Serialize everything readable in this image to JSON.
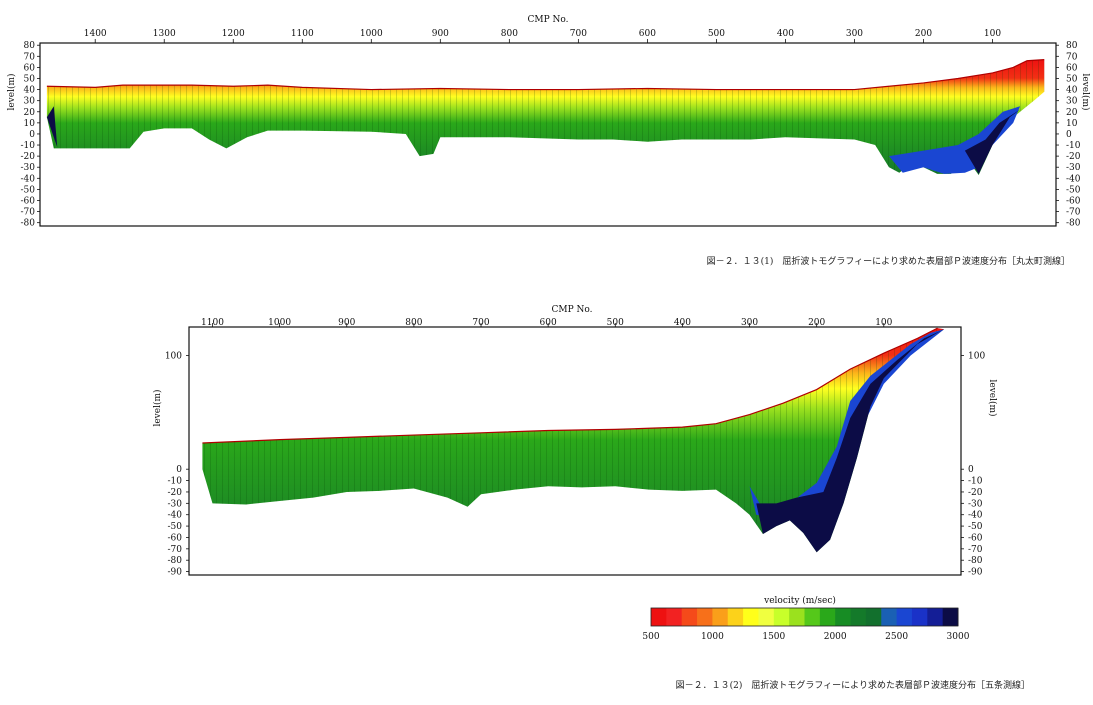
{
  "chart_data": [
    {
      "type": "heatmap",
      "title": "",
      "caption": "図－２．１３(1)　屈折波トモグラフィーにより求めた表層部Ｐ波速度分布［丸太町測線］",
      "xlabel": "CMP No.",
      "ylabel_left": "level(m)",
      "ylabel_right": "level(m)",
      "x_ticks": [
        1400,
        1300,
        1200,
        1100,
        1000,
        900,
        800,
        700,
        600,
        500,
        400,
        300,
        200,
        100
      ],
      "x_range": [
        1480,
        8
      ],
      "y_ticks": [
        80,
        70,
        60,
        50,
        40,
        30,
        20,
        10,
        0,
        -10,
        -20,
        -30,
        -40,
        -50,
        -60,
        -70,
        -80
      ],
      "y_range": [
        -83,
        82
      ],
      "surface": [
        [
          1470,
          43
        ],
        [
          1400,
          42
        ],
        [
          1360,
          44
        ],
        [
          1260,
          44
        ],
        [
          1200,
          43
        ],
        [
          1150,
          44
        ],
        [
          1100,
          42
        ],
        [
          1000,
          40
        ],
        [
          900,
          41
        ],
        [
          800,
          40
        ],
        [
          700,
          40
        ],
        [
          600,
          41
        ],
        [
          500,
          40
        ],
        [
          400,
          40
        ],
        [
          300,
          40
        ],
        [
          250,
          43
        ],
        [
          200,
          46
        ],
        [
          150,
          50
        ],
        [
          100,
          55
        ],
        [
          70,
          60
        ],
        [
          50,
          66
        ],
        [
          25,
          67
        ]
      ],
      "bottom": [
        [
          1470,
          15
        ],
        [
          1460,
          -13
        ],
        [
          1400,
          -13
        ],
        [
          1350,
          -13
        ],
        [
          1330,
          2
        ],
        [
          1300,
          5
        ],
        [
          1260,
          5
        ],
        [
          1235,
          -5
        ],
        [
          1210,
          -13
        ],
        [
          1180,
          -3
        ],
        [
          1150,
          3
        ],
        [
          1100,
          3
        ],
        [
          1000,
          2
        ],
        [
          950,
          0
        ],
        [
          930,
          -20
        ],
        [
          910,
          -18
        ],
        [
          900,
          -3
        ],
        [
          850,
          -3
        ],
        [
          800,
          -3
        ],
        [
          700,
          -5
        ],
        [
          650,
          -5
        ],
        [
          600,
          -7
        ],
        [
          550,
          -5
        ],
        [
          500,
          -5
        ],
        [
          450,
          -5
        ],
        [
          400,
          -3
        ],
        [
          300,
          -5
        ],
        [
          270,
          -10
        ],
        [
          250,
          -30
        ],
        [
          235,
          -35
        ],
        [
          215,
          -25
        ],
        [
          200,
          -30
        ],
        [
          180,
          -36
        ],
        [
          160,
          -36
        ],
        [
          140,
          -20
        ],
        [
          120,
          -37
        ],
        [
          100,
          -10
        ],
        [
          80,
          10
        ],
        [
          60,
          20
        ],
        [
          40,
          30
        ],
        [
          25,
          38
        ]
      ],
      "high_velocity_patches": [
        {
          "velocity": 3000,
          "region": [
            [
              1470,
              15
            ],
            [
              1455,
              -12
            ],
            [
              1460,
              25
            ]
          ]
        },
        {
          "velocity": 2600,
          "region": [
            [
              250,
              -20
            ],
            [
              230,
              -35
            ],
            [
              200,
              -30
            ],
            [
              170,
              -36
            ],
            [
              140,
              -35
            ],
            [
              120,
              -30
            ],
            [
              100,
              -10
            ],
            [
              70,
              10
            ],
            [
              60,
              25
            ],
            [
              85,
              20
            ],
            [
              120,
              0
            ],
            [
              150,
              -10
            ],
            [
              200,
              -15
            ]
          ]
        },
        {
          "velocity": 3000,
          "region": [
            [
              140,
              -15
            ],
            [
              120,
              -36
            ],
            [
              100,
              -10
            ],
            [
              75,
              15
            ],
            [
              60,
              22
            ],
            [
              90,
              10
            ],
            [
              110,
              -5
            ]
          ]
        }
      ]
    },
    {
      "type": "heatmap",
      "title": "",
      "caption": "図－２．１３(2)　屈折波トモグラフィーにより求めた表層部Ｐ波速度分布［五条測線］",
      "xlabel": "CMP No.",
      "ylabel_left": "level(m)",
      "ylabel_right": "level(m)",
      "x_ticks": [
        1100,
        1000,
        900,
        800,
        700,
        600,
        500,
        400,
        300,
        200,
        100
      ],
      "x_range": [
        1135,
        -15
      ],
      "y_ticks": [
        100,
        0,
        -10,
        -20,
        -30,
        -40,
        -50,
        -60,
        -70,
        -80,
        -90
      ],
      "y_ticks_right": [
        100,
        0,
        -10,
        -20,
        -30,
        -40,
        -50,
        -60,
        -70,
        -80,
        -90
      ],
      "y_range": [
        -93,
        125
      ],
      "surface": [
        [
          1115,
          23
        ],
        [
          1000,
          26
        ],
        [
          900,
          28
        ],
        [
          800,
          30
        ],
        [
          700,
          32
        ],
        [
          600,
          34
        ],
        [
          500,
          35
        ],
        [
          450,
          36
        ],
        [
          400,
          37
        ],
        [
          350,
          40
        ],
        [
          300,
          48
        ],
        [
          250,
          58
        ],
        [
          200,
          70
        ],
        [
          150,
          88
        ],
        [
          100,
          102
        ],
        [
          50,
          115
        ],
        [
          20,
          124
        ]
      ],
      "bottom": [
        [
          1115,
          0
        ],
        [
          1100,
          -30
        ],
        [
          1050,
          -31
        ],
        [
          1000,
          -28
        ],
        [
          950,
          -25
        ],
        [
          900,
          -20
        ],
        [
          850,
          -19
        ],
        [
          800,
          -17
        ],
        [
          750,
          -25
        ],
        [
          720,
          -33
        ],
        [
          700,
          -22
        ],
        [
          650,
          -18
        ],
        [
          600,
          -15
        ],
        [
          550,
          -16
        ],
        [
          500,
          -15
        ],
        [
          450,
          -18
        ],
        [
          400,
          -19
        ],
        [
          350,
          -18
        ],
        [
          320,
          -30
        ],
        [
          300,
          -40
        ],
        [
          280,
          -57
        ],
        [
          260,
          -50
        ],
        [
          240,
          -45
        ],
        [
          220,
          -56
        ],
        [
          200,
          -73
        ],
        [
          180,
          -62
        ],
        [
          160,
          -30
        ],
        [
          140,
          10
        ],
        [
          120,
          55
        ],
        [
          100,
          80
        ],
        [
          80,
          92
        ],
        [
          50,
          110
        ],
        [
          20,
          120
        ],
        [
          10,
          123
        ]
      ],
      "high_velocity_patches": [
        {
          "velocity": 2600,
          "region": [
            [
              300,
              -15
            ],
            [
              280,
              -35
            ],
            [
              240,
              -30
            ],
            [
              200,
              -12
            ],
            [
              170,
              20
            ],
            [
              150,
              60
            ],
            [
              120,
              82
            ],
            [
              90,
              96
            ],
            [
              60,
              110
            ],
            [
              30,
              120
            ],
            [
              10,
              123
            ],
            [
              60,
              100
            ],
            [
              100,
              75
            ],
            [
              130,
              40
            ],
            [
              160,
              -10
            ],
            [
              200,
              -35
            ],
            [
              250,
              -45
            ],
            [
              290,
              -40
            ]
          ]
        },
        {
          "velocity": 3000,
          "region": [
            [
              290,
              -30
            ],
            [
              280,
              -57
            ],
            [
              260,
              -50
            ],
            [
              240,
              -45
            ],
            [
              220,
              -56
            ],
            [
              200,
              -73
            ],
            [
              180,
              -62
            ],
            [
              160,
              -30
            ],
            [
              140,
              10
            ],
            [
              120,
              55
            ],
            [
              100,
              80
            ],
            [
              80,
              92
            ],
            [
              50,
              110
            ],
            [
              20,
              120
            ],
            [
              10,
              123
            ],
            [
              40,
              115
            ],
            [
              80,
              96
            ],
            [
              120,
              75
            ],
            [
              150,
              45
            ],
            [
              170,
              10
            ],
            [
              190,
              -20
            ],
            [
              230,
              -25
            ],
            [
              260,
              -30
            ]
          ]
        }
      ]
    }
  ],
  "colorbar": {
    "title": "velocity (m/sec)",
    "min": 500,
    "max": 3000,
    "ticks": [
      500,
      1000,
      1500,
      2000,
      2500,
      3000
    ],
    "colors": [
      "#ee1111",
      "#f22222",
      "#f54a1a",
      "#f7701a",
      "#fa9f1a",
      "#fcd21a",
      "#ffff1a",
      "#f0ff40",
      "#c8ff2a",
      "#9be11e",
      "#55c81a",
      "#2aa81a",
      "#178c24",
      "#147a2a",
      "#12702d",
      "#1a60b4",
      "#1a46d2",
      "#1a32c8",
      "#141e96",
      "#0c0c46"
    ]
  }
}
